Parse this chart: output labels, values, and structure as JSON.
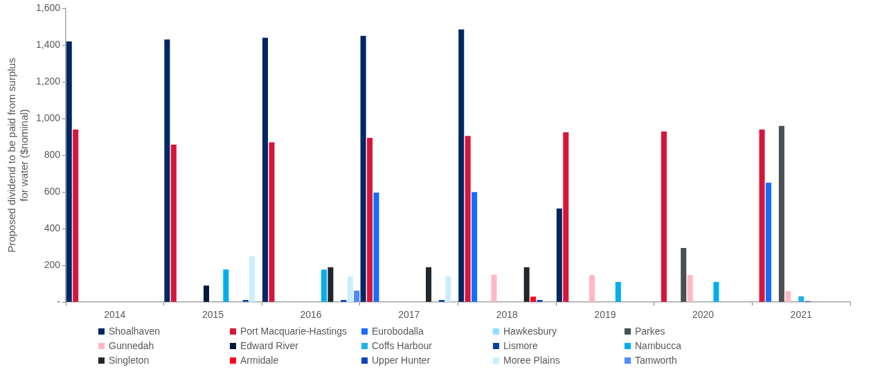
{
  "chart_data": {
    "type": "bar",
    "ylabel": "Proposed dividend to be paid from surplus for water ($nominal)",
    "categories": [
      "2014",
      "2015",
      "2016",
      "2017",
      "2018",
      "2019",
      "2020",
      "2021"
    ],
    "ylim": [
      0,
      1600
    ],
    "yticks": [
      {
        "value": 0,
        "label": "-"
      },
      200,
      400,
      600,
      800,
      {
        "value": 1000,
        "label": "1,000"
      },
      {
        "value": 1200,
        "label": "1,200"
      },
      {
        "value": 1400,
        "label": "1,400"
      },
      {
        "value": 1600,
        "label": "1,600"
      }
    ],
    "grid": false,
    "legend": "bottom",
    "series": [
      {
        "name": "Shoalhaven",
        "color": "#002664",
        "values": [
          1420,
          1430,
          1440,
          1450,
          1485,
          510,
          null,
          null
        ]
      },
      {
        "name": "Port Macquarie-Hastings",
        "color": "#d7153a",
        "values": [
          940,
          858,
          870,
          895,
          905,
          925,
          930,
          940
        ]
      },
      {
        "name": "Eurobodalla",
        "color": "#146cfd",
        "values": [
          null,
          null,
          null,
          597,
          600,
          null,
          null,
          650
        ]
      },
      {
        "name": "Hawkesbury",
        "color": "#8ce0ff",
        "values": [
          null,
          null,
          null,
          null,
          null,
          null,
          null,
          null
        ]
      },
      {
        "name": "Parkes",
        "color": "#495054",
        "values": [
          null,
          null,
          null,
          null,
          null,
          null,
          295,
          960
        ]
      },
      {
        "name": "Gunnedah",
        "color": "#ffb8c1",
        "values": [
          null,
          null,
          null,
          null,
          150,
          148,
          148,
          60
        ]
      },
      {
        "name": "Edward River",
        "color": "#00183a",
        "values": [
          null,
          90,
          null,
          null,
          null,
          null,
          null,
          null
        ]
      },
      {
        "name": "Coffs Harbour",
        "color": "#1fb1ea",
        "values": [
          null,
          null,
          null,
          null,
          null,
          null,
          null,
          32
        ]
      },
      {
        "name": "Lismore",
        "color": "#0a3fa6",
        "values": [
          null,
          null,
          null,
          null,
          null,
          null,
          null,
          5
        ]
      },
      {
        "name": "Nambucca",
        "color": "#00aeef",
        "values": [
          null,
          178,
          177,
          null,
          null,
          110,
          110,
          null
        ]
      },
      {
        "name": "Singleton",
        "color": "#22272b",
        "values": [
          null,
          null,
          190,
          190,
          190,
          null,
          null,
          null
        ]
      },
      {
        "name": "Armidale",
        "color": "#ff0020",
        "values": [
          null,
          null,
          null,
          null,
          30,
          null,
          null,
          null
        ]
      },
      {
        "name": "Upper Hunter",
        "color": "#0a46b4",
        "values": [
          null,
          12,
          12,
          12,
          12,
          null,
          null,
          null
        ]
      },
      {
        "name": "Moree Plains",
        "color": "#cbedfd",
        "values": [
          null,
          250,
          140,
          140,
          null,
          null,
          null,
          null
        ]
      },
      {
        "name": "Tamworth",
        "color": "#4b8bff",
        "values": [
          null,
          null,
          63,
          null,
          null,
          null,
          null,
          null
        ]
      }
    ]
  }
}
